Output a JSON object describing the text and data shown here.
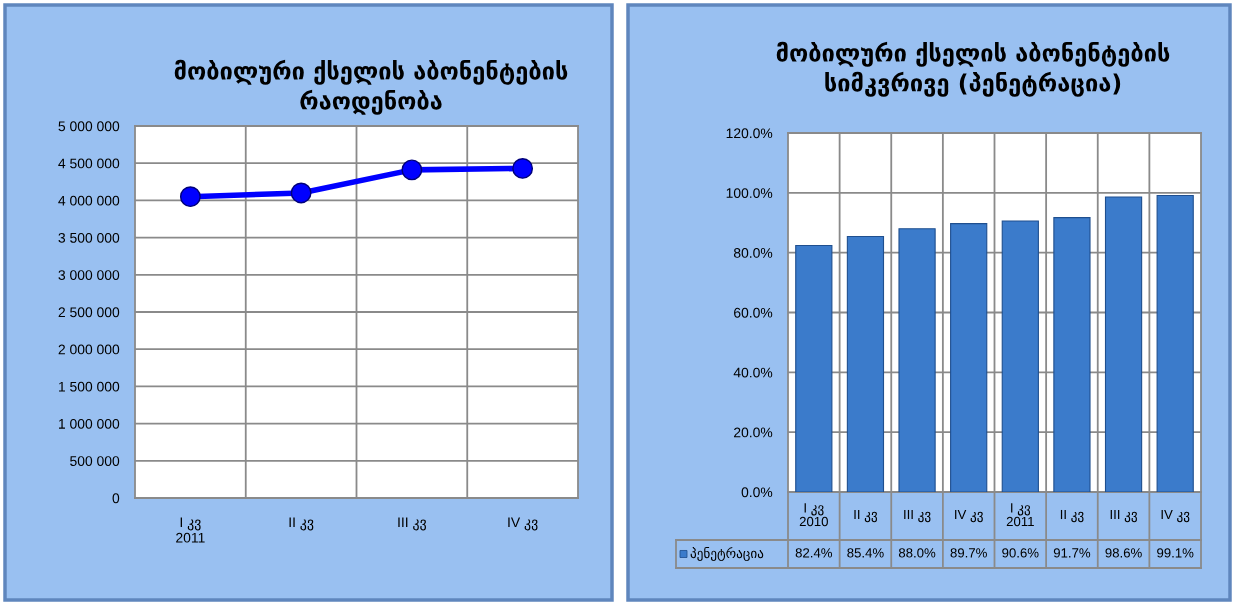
{
  "chart_data": [
    {
      "type": "line",
      "title": "მობილური ქსელის აბონენტების\nრაოდენობა",
      "categories": [
        "I კვ\n2011",
        "II კვ",
        "III კვ",
        "IV კვ"
      ],
      "series": [
        {
          "color": "#0000ff",
          "values": [
            4050000,
            4100000,
            4410000,
            4430000
          ]
        }
      ],
      "ylim": [
        0,
        5000000
      ],
      "yticks": [
        0,
        {
          "value": 500000,
          "label": "500 000"
        },
        {
          "value": 1000000,
          "label": "1 000 000"
        },
        {
          "value": 1500000,
          "label": "1 500 000"
        },
        {
          "value": 2000000,
          "label": "2 000 000"
        },
        {
          "value": 2500000,
          "label": "2 500 000"
        },
        {
          "value": 3000000,
          "label": "3 000 000"
        },
        {
          "value": 3500000,
          "label": "3 500 000"
        },
        {
          "value": 4000000,
          "label": "4 000 000"
        },
        {
          "value": 4500000,
          "label": "4 500 000"
        },
        {
          "value": 5000000,
          "label": "5 000 000"
        }
      ],
      "grid": true,
      "marker": "circle",
      "line_style": "solid"
    },
    {
      "type": "bar",
      "title": "მობილური ქსელის აბონენტების\nსიმკვრივე (პენეტრაცია)",
      "categories": [
        "I კვ\n2010",
        "II კვ",
        "III კვ",
        "IV კვ",
        "I კვ\n2011",
        "II კვ",
        "III კვ",
        "IV კვ"
      ],
      "series": [
        {
          "name": "პენეტრაცია",
          "color": "#3b7bcb",
          "values": [
            82.4,
            85.4,
            88.0,
            89.7,
            90.6,
            91.7,
            98.6,
            99.1
          ],
          "value_labels": [
            "82.4%",
            "85.4%",
            "88.0%",
            "89.7%",
            "90.6%",
            "91.7%",
            "98.6%",
            "99.1%"
          ]
        }
      ],
      "ylim": [
        0,
        120
      ],
      "yticks": [
        {
          "value": 0,
          "label": "0.0%"
        },
        {
          "value": 20,
          "label": "20.0%"
        },
        {
          "value": 40,
          "label": "40.0%"
        },
        {
          "value": 60,
          "label": "60.0%"
        },
        {
          "value": 80,
          "label": "80.0%"
        },
        {
          "value": 100,
          "label": "100.0%"
        },
        {
          "value": 120,
          "label": "120.0%"
        }
      ],
      "grid": true,
      "legend": "bottom"
    }
  ]
}
